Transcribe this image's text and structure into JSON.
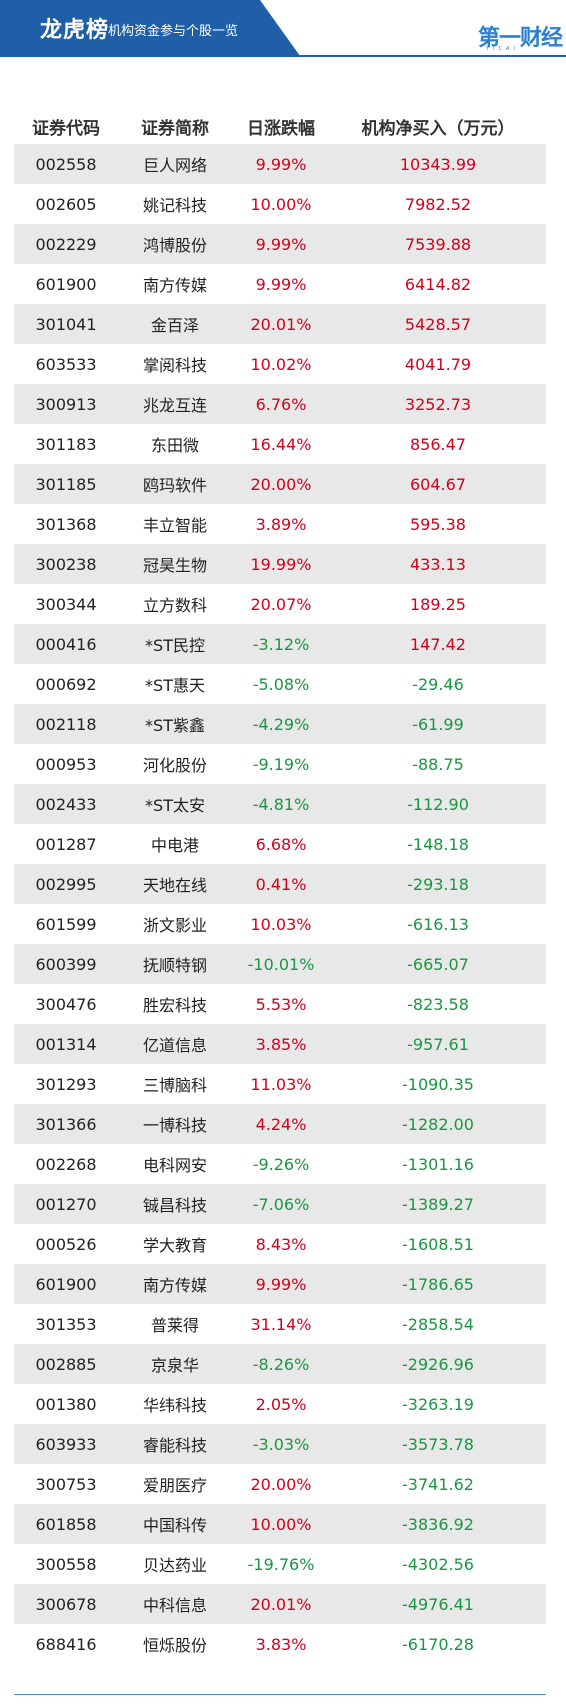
{
  "header": {
    "title": "龙虎榜",
    "subtitle": "机构资金参与个股一览",
    "logo_text": "第一财经",
    "logo_sub": "YICAI"
  },
  "colors": {
    "up": "#d0021b",
    "down": "#1a9641",
    "brand": "#1f5fa8"
  },
  "table": {
    "columns": [
      "证券代码",
      "证券简称",
      "日涨跌幅",
      "机构净买入（万元）"
    ],
    "rows": [
      {
        "code": "002558",
        "name": "巨人网络",
        "change": "9.99%",
        "net": "10343.99",
        "change_dir": "up",
        "net_dir": "up"
      },
      {
        "code": "002605",
        "name": "姚记科技",
        "change": "10.00%",
        "net": "7982.52",
        "change_dir": "up",
        "net_dir": "up"
      },
      {
        "code": "002229",
        "name": "鸿博股份",
        "change": "9.99%",
        "net": "7539.88",
        "change_dir": "up",
        "net_dir": "up"
      },
      {
        "code": "601900",
        "name": "南方传媒",
        "change": "9.99%",
        "net": "6414.82",
        "change_dir": "up",
        "net_dir": "up"
      },
      {
        "code": "301041",
        "name": "金百泽",
        "change": "20.01%",
        "net": "5428.57",
        "change_dir": "up",
        "net_dir": "up"
      },
      {
        "code": "603533",
        "name": "掌阅科技",
        "change": "10.02%",
        "net": "4041.79",
        "change_dir": "up",
        "net_dir": "up"
      },
      {
        "code": "300913",
        "name": "兆龙互连",
        "change": "6.76%",
        "net": "3252.73",
        "change_dir": "up",
        "net_dir": "up"
      },
      {
        "code": "301183",
        "name": "东田微",
        "change": "16.44%",
        "net": "856.47",
        "change_dir": "up",
        "net_dir": "up"
      },
      {
        "code": "301185",
        "name": "鸥玛软件",
        "change": "20.00%",
        "net": "604.67",
        "change_dir": "up",
        "net_dir": "up"
      },
      {
        "code": "301368",
        "name": "丰立智能",
        "change": "3.89%",
        "net": "595.38",
        "change_dir": "up",
        "net_dir": "up"
      },
      {
        "code": "300238",
        "name": "冠昊生物",
        "change": "19.99%",
        "net": "433.13",
        "change_dir": "up",
        "net_dir": "up"
      },
      {
        "code": "300344",
        "name": "立方数科",
        "change": "20.07%",
        "net": "189.25",
        "change_dir": "up",
        "net_dir": "up"
      },
      {
        "code": "000416",
        "name": "*ST民控",
        "change": "-3.12%",
        "net": "147.42",
        "change_dir": "down",
        "net_dir": "up"
      },
      {
        "code": "000692",
        "name": "*ST惠天",
        "change": "-5.08%",
        "net": "-29.46",
        "change_dir": "down",
        "net_dir": "down"
      },
      {
        "code": "002118",
        "name": "*ST紫鑫",
        "change": "-4.29%",
        "net": "-61.99",
        "change_dir": "down",
        "net_dir": "down"
      },
      {
        "code": "000953",
        "name": "河化股份",
        "change": "-9.19%",
        "net": "-88.75",
        "change_dir": "down",
        "net_dir": "down"
      },
      {
        "code": "002433",
        "name": "*ST太安",
        "change": "-4.81%",
        "net": "-112.90",
        "change_dir": "down",
        "net_dir": "down"
      },
      {
        "code": "001287",
        "name": "中电港",
        "change": "6.68%",
        "net": "-148.18",
        "change_dir": "up",
        "net_dir": "down"
      },
      {
        "code": "002995",
        "name": "天地在线",
        "change": "0.41%",
        "net": "-293.18",
        "change_dir": "up",
        "net_dir": "down"
      },
      {
        "code": "601599",
        "name": "浙文影业",
        "change": "10.03%",
        "net": "-616.13",
        "change_dir": "up",
        "net_dir": "down"
      },
      {
        "code": "600399",
        "name": "抚顺特钢",
        "change": "-10.01%",
        "net": "-665.07",
        "change_dir": "down",
        "net_dir": "down"
      },
      {
        "code": "300476",
        "name": "胜宏科技",
        "change": "5.53%",
        "net": "-823.58",
        "change_dir": "up",
        "net_dir": "down"
      },
      {
        "code": "001314",
        "name": "亿道信息",
        "change": "3.85%",
        "net": "-957.61",
        "change_dir": "up",
        "net_dir": "down"
      },
      {
        "code": "301293",
        "name": "三博脑科",
        "change": "11.03%",
        "net": "-1090.35",
        "change_dir": "up",
        "net_dir": "down"
      },
      {
        "code": "301366",
        "name": "一博科技",
        "change": "4.24%",
        "net": "-1282.00",
        "change_dir": "up",
        "net_dir": "down"
      },
      {
        "code": "002268",
        "name": "电科网安",
        "change": "-9.26%",
        "net": "-1301.16",
        "change_dir": "down",
        "net_dir": "down"
      },
      {
        "code": "001270",
        "name": "铖昌科技",
        "change": "-7.06%",
        "net": "-1389.27",
        "change_dir": "down",
        "net_dir": "down"
      },
      {
        "code": "000526",
        "name": "学大教育",
        "change": "8.43%",
        "net": "-1608.51",
        "change_dir": "up",
        "net_dir": "down"
      },
      {
        "code": "601900",
        "name": "南方传媒",
        "change": "9.99%",
        "net": "-1786.65",
        "change_dir": "up",
        "net_dir": "down"
      },
      {
        "code": "301353",
        "name": "普莱得",
        "change": "31.14%",
        "net": "-2858.54",
        "change_dir": "up",
        "net_dir": "down"
      },
      {
        "code": "002885",
        "name": "京泉华",
        "change": "-8.26%",
        "net": "-2926.96",
        "change_dir": "down",
        "net_dir": "down"
      },
      {
        "code": "001380",
        "name": "华纬科技",
        "change": "2.05%",
        "net": "-3263.19",
        "change_dir": "up",
        "net_dir": "down"
      },
      {
        "code": "603933",
        "name": "睿能科技",
        "change": "-3.03%",
        "net": "-3573.78",
        "change_dir": "down",
        "net_dir": "down"
      },
      {
        "code": "300753",
        "name": "爱朋医疗",
        "change": "20.00%",
        "net": "-3741.62",
        "change_dir": "up",
        "net_dir": "down"
      },
      {
        "code": "601858",
        "name": "中国科传",
        "change": "10.00%",
        "net": "-3836.92",
        "change_dir": "up",
        "net_dir": "down"
      },
      {
        "code": "300558",
        "name": "贝达药业",
        "change": "-19.76%",
        "net": "-4302.56",
        "change_dir": "down",
        "net_dir": "down"
      },
      {
        "code": "300678",
        "name": "中科信息",
        "change": "20.01%",
        "net": "-4976.41",
        "change_dir": "up",
        "net_dir": "down"
      },
      {
        "code": "688416",
        "name": "恒烁股份",
        "change": "3.83%",
        "net": "-6170.28",
        "change_dir": "up",
        "net_dir": "down"
      }
    ]
  }
}
